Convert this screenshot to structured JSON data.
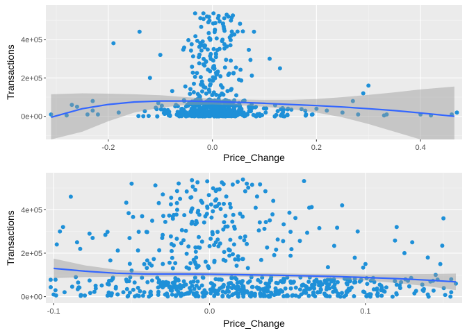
{
  "colors": {
    "panel_background": "#ebebeb",
    "grid_major": "#ffffff",
    "grid_minor": "#f5f5f5",
    "point": "#1e90d8",
    "smooth_line": "#3366ff",
    "confidence_band": "#999999"
  },
  "chart_data": [
    {
      "type": "scatter",
      "title": "",
      "xlabel": "Price_Change",
      "ylabel": "Transactions",
      "xlim": [
        -0.32,
        0.48
      ],
      "ylim": [
        -120000,
        580000
      ],
      "xticks": [
        -0.2,
        0.0,
        0.2,
        0.4
      ],
      "xtick_labels": [
        "-0.2",
        "0.0",
        "0.2",
        "0.4"
      ],
      "yticks": [
        0,
        200000,
        400000
      ],
      "ytick_labels": [
        "0e+00",
        "2e+05",
        "4e+05"
      ],
      "grid": true,
      "legend": "none",
      "smooth": {
        "x": [
          -0.31,
          -0.25,
          -0.2,
          -0.15,
          -0.1,
          -0.05,
          0.0,
          0.05,
          0.1,
          0.15,
          0.2,
          0.25,
          0.3,
          0.35,
          0.4,
          0.465
        ],
        "y": [
          -5000,
          40000,
          62000,
          75000,
          80000,
          80000,
          77000,
          73000,
          68000,
          62000,
          56000,
          49000,
          40000,
          30000,
          18000,
          0
        ],
        "lower": [
          -140000,
          -80000,
          -25000,
          20000,
          45000,
          60000,
          62000,
          58000,
          50000,
          38000,
          20000,
          -5000,
          -40000,
          -80000,
          -120000,
          -160000
        ],
        "upper": [
          115000,
          120000,
          118000,
          115000,
          110000,
          100000,
          92000,
          88000,
          86000,
          86000,
          90000,
          100000,
          112000,
          125000,
          140000,
          155000
        ]
      },
      "point_groups": [
        {
          "center": 0.0,
          "spread": 0.065,
          "ymin": 100000,
          "ymax": 540000,
          "count": 150,
          "seed": 11
        },
        {
          "center": 0.0,
          "spread": 0.07,
          "ymin": 0,
          "ymax": 90000,
          "count": 260,
          "seed": 12
        },
        {
          "center": 0.05,
          "spread": 0.13,
          "ymin": 0,
          "ymax": 60000,
          "count": 110,
          "seed": 13
        },
        {
          "center": -0.05,
          "spread": 0.12,
          "ymin": 0,
          "ymax": 70000,
          "count": 80,
          "seed": 14
        }
      ],
      "points": [
        [
          -0.31,
          10000
        ],
        [
          -0.28,
          5000
        ],
        [
          -0.27,
          60000
        ],
        [
          -0.26,
          50000
        ],
        [
          -0.24,
          10000
        ],
        [
          -0.23,
          30000
        ],
        [
          -0.23,
          80000
        ],
        [
          -0.22,
          10000
        ],
        [
          -0.19,
          380000
        ],
        [
          -0.18,
          20000
        ],
        [
          -0.14,
          440000
        ],
        [
          -0.12,
          200000
        ],
        [
          -0.1,
          320000
        ],
        [
          0.18,
          10000
        ],
        [
          0.2,
          40000
        ],
        [
          0.22,
          30000
        ],
        [
          0.25,
          20000
        ],
        [
          0.27,
          80000
        ],
        [
          0.28,
          10000
        ],
        [
          0.29,
          120000
        ],
        [
          0.3,
          160000
        ],
        [
          0.33,
          5000
        ],
        [
          0.335,
          10000
        ],
        [
          0.4,
          10000
        ],
        [
          0.42,
          5000
        ],
        [
          0.46,
          10000
        ],
        [
          0.47,
          20000
        ],
        [
          0.08,
          440000
        ],
        [
          0.11,
          300000
        ],
        [
          0.13,
          250000
        ]
      ]
    },
    {
      "type": "scatter",
      "title": "",
      "xlabel": "Price_Change",
      "ylabel": "Transactions",
      "xlim": [
        -0.105,
        0.162
      ],
      "ylim": [
        -30000,
        570000
      ],
      "xticks": [
        -0.1,
        0.0,
        0.1
      ],
      "xtick_labels": [
        "-0.1",
        "0.0",
        "0.1"
      ],
      "yticks": [
        0,
        200000,
        400000
      ],
      "ytick_labels": [
        "0e+00",
        "2e+05",
        "4e+05"
      ],
      "grid": true,
      "legend": "none",
      "smooth": {
        "x": [
          -0.1,
          -0.08,
          -0.06,
          -0.04,
          -0.02,
          0.0,
          0.02,
          0.04,
          0.06,
          0.08,
          0.1,
          0.12,
          0.14,
          0.158
        ],
        "y": [
          130000,
          117000,
          108000,
          104000,
          104000,
          103000,
          101000,
          99000,
          96000,
          93000,
          88000,
          83000,
          76000,
          68000
        ],
        "lower": [
          85000,
          90000,
          92000,
          92000,
          93000,
          93000,
          92000,
          90000,
          87000,
          82000,
          74000,
          63000,
          48000,
          30000
        ],
        "upper": [
          175000,
          144000,
          124000,
          116000,
          115000,
          113000,
          110000,
          108000,
          105000,
          104000,
          102000,
          103000,
          104000,
          106000
        ]
      },
      "point_groups": [
        {
          "center": 0.0,
          "spread": 0.06,
          "ymin": 130000,
          "ymax": 540000,
          "count": 170,
          "seed": 21
        },
        {
          "center": 0.03,
          "spread": 0.13,
          "ymin": 0,
          "ymax": 90000,
          "count": 430,
          "seed": 22
        },
        {
          "center": 0.03,
          "spread": 0.13,
          "ymin": 60000,
          "ymax": 400000,
          "count": 45,
          "seed": 23
        }
      ],
      "points": [
        [
          -0.1,
          10000
        ],
        [
          -0.098,
          240000
        ],
        [
          -0.096,
          300000
        ],
        [
          -0.094,
          320000
        ],
        [
          -0.093,
          20000
        ],
        [
          -0.089,
          460000
        ],
        [
          -0.085,
          250000
        ],
        [
          -0.083,
          220000
        ],
        [
          -0.08,
          5000
        ],
        [
          -0.077,
          290000
        ],
        [
          -0.075,
          270000
        ],
        [
          -0.05,
          520000
        ],
        [
          -0.05,
          120000
        ],
        [
          -0.03,
          470000
        ],
        [
          0.085,
          420000
        ],
        [
          0.095,
          300000
        ],
        [
          0.1,
          150000
        ],
        [
          0.12,
          320000
        ],
        [
          0.125,
          200000
        ],
        [
          0.13,
          250000
        ],
        [
          0.14,
          180000
        ],
        [
          0.145,
          100000
        ],
        [
          0.148,
          150000
        ],
        [
          0.15,
          360000
        ],
        [
          0.155,
          80000
        ],
        [
          0.155,
          20000
        ],
        [
          0.158,
          60000
        ],
        [
          0.11,
          30000
        ],
        [
          0.12,
          10000
        ],
        [
          0.14,
          10000
        ]
      ]
    }
  ]
}
